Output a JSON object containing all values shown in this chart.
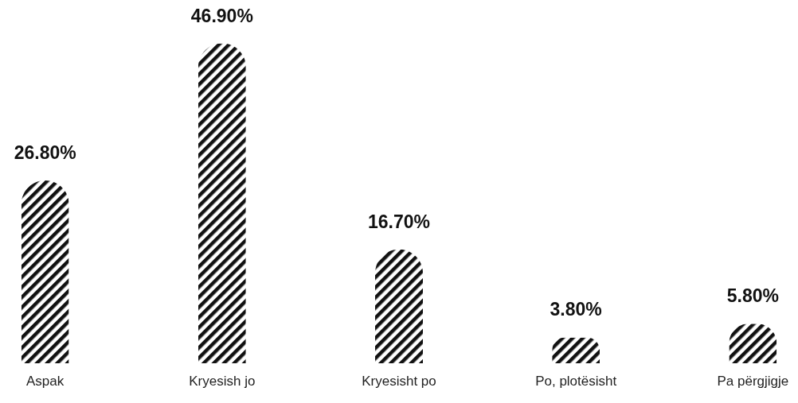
{
  "chart_data": {
    "type": "bar",
    "categories": [
      "Aspak",
      "Kryesish jo",
      "Kryesisht po",
      "Po, plotësisht",
      "Pa përgjigje"
    ],
    "values": [
      26.8,
      46.9,
      16.7,
      3.8,
      5.8
    ],
    "value_labels": [
      "26.80%",
      "46.90%",
      "16.70%",
      "3.80%",
      "5.80%"
    ],
    "color": "#111111",
    "grid": false
  }
}
